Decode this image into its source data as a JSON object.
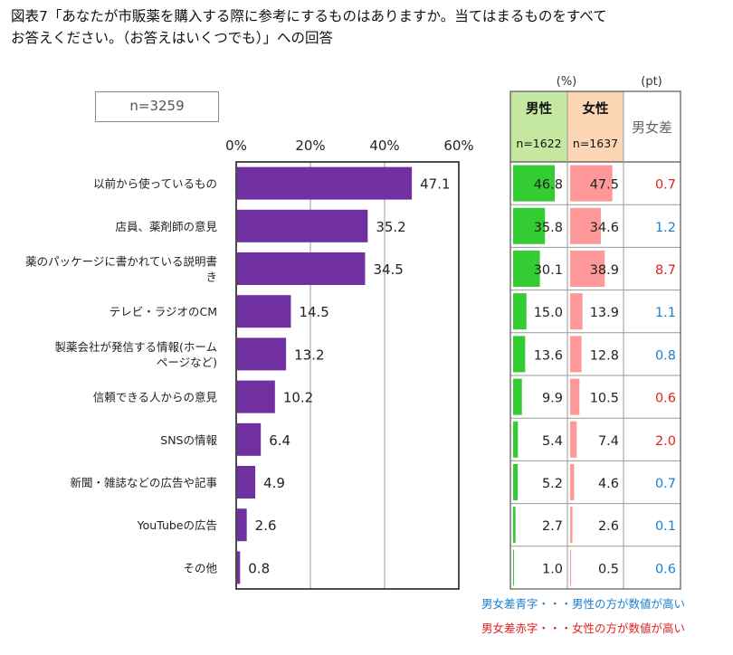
{
  "title_lines": [
    "図表7「あなたが市販薬を購入する際に参考にするものはありますか。当てはまるものをすべて",
    "お答えください。（お答えはいくつでも）」への回答"
  ],
  "n_label": "n=3259",
  "table": {
    "unit_percent": "(%)",
    "unit_pt": "(pt)",
    "male_header": "男性",
    "male_n": "n=1622",
    "female_header": "女性",
    "female_n": "n=1637",
    "diff_header": "男女差"
  },
  "notes": {
    "blue": "男女差青字・・・男性の方が数値が高い",
    "red": "男女差赤字・・・女性の方が数値が高い"
  },
  "colors": {
    "bar": "#7030a0",
    "male_bar": "#33cc33",
    "female_bar": "#ff9999",
    "male_header_bg": "#c4e8a0",
    "female_header_bg": "#fcd5b4",
    "diff_blue": "#1b7fd0",
    "diff_red": "#e32020"
  },
  "chart_data": {
    "type": "bar",
    "orientation": "horizontal",
    "categories": [
      [
        "以前から使っているもの"
      ],
      [
        "店員、薬剤師の意見"
      ],
      [
        "薬のパッケージに書かれている説明書",
        "き"
      ],
      [
        "テレビ・ラジオのCM"
      ],
      [
        "製薬会社が発信する情報(ホーム",
        "ページなど)"
      ],
      [
        "信頼できる人からの意見"
      ],
      [
        "SNSの情報"
      ],
      [
        "新聞・雑誌などの広告や記事"
      ],
      [
        "YouTubeの広告"
      ],
      [
        "その他"
      ]
    ],
    "values": [
      47.1,
      35.2,
      34.5,
      14.5,
      13.2,
      10.2,
      6.4,
      4.9,
      2.6,
      0.8
    ],
    "value_labels": [
      "47.1",
      "35.2",
      "34.5",
      "14.5",
      "13.2",
      "10.2",
      "6.4",
      "4.9",
      "2.6",
      "0.8"
    ],
    "x_ticks": [
      0,
      20,
      40,
      60
    ],
    "x_tick_labels": [
      "0%",
      "20%",
      "40%",
      "60%"
    ],
    "xlim": [
      0,
      60
    ],
    "grid": true,
    "male": [
      46.8,
      35.8,
      30.1,
      15.0,
      13.6,
      9.9,
      5.4,
      5.2,
      2.7,
      1.0
    ],
    "male_labels": [
      "46.8",
      "35.8",
      "30.1",
      "15.0",
      "13.6",
      "9.9",
      "5.4",
      "5.2",
      "2.7",
      "1.0"
    ],
    "female": [
      47.5,
      34.6,
      38.9,
      13.9,
      12.8,
      10.5,
      7.4,
      4.6,
      2.6,
      0.5
    ],
    "female_labels": [
      "47.5",
      "34.6",
      "38.9",
      "13.9",
      "12.8",
      "10.5",
      "7.4",
      "4.6",
      "2.6",
      "0.5"
    ],
    "diff_labels": [
      "0.7",
      "1.2",
      "8.7",
      "1.1",
      "0.8",
      "0.6",
      "2.0",
      "0.7",
      "0.1",
      "0.6"
    ],
    "diff_higher": [
      "female",
      "male",
      "female",
      "male",
      "male",
      "female",
      "female",
      "male",
      "male",
      "male"
    ]
  }
}
